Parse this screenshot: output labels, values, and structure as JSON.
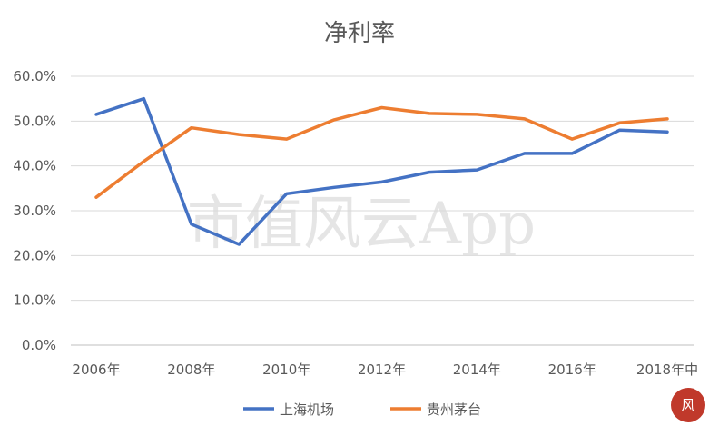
{
  "chart_data": {
    "type": "line",
    "title": "净利率",
    "x": [
      2006,
      2007,
      2008,
      2009,
      2010,
      2011,
      2012,
      2013,
      2014,
      2015,
      2016,
      2017,
      2018
    ],
    "x_tick_labels": [
      "2006年",
      "2008年",
      "2010年",
      "2012年",
      "2014年",
      "2016年",
      "2018年中"
    ],
    "y_tick_labels": [
      "0.0%",
      "10.0%",
      "20.0%",
      "30.0%",
      "40.0%",
      "50.0%",
      "60.0%"
    ],
    "ylim": [
      0,
      60
    ],
    "y_unit": "%",
    "grid": true,
    "legend_position": "bottom",
    "series": [
      {
        "name": "上海机场",
        "color": "#4472c4",
        "values": [
          51.5,
          55.0,
          27.0,
          22.5,
          33.8,
          35.2,
          36.4,
          38.6,
          39.1,
          42.8,
          42.8,
          48.0,
          47.6
        ]
      },
      {
        "name": "贵州茅台",
        "color": "#ed7d31",
        "values": [
          33.0,
          41.0,
          48.5,
          47.0,
          46.0,
          50.3,
          53.0,
          51.7,
          51.5,
          50.5,
          46.0,
          49.6,
          50.5
        ]
      }
    ]
  },
  "watermark": "市值风云App",
  "logo_icon": "seal-logo-icon"
}
